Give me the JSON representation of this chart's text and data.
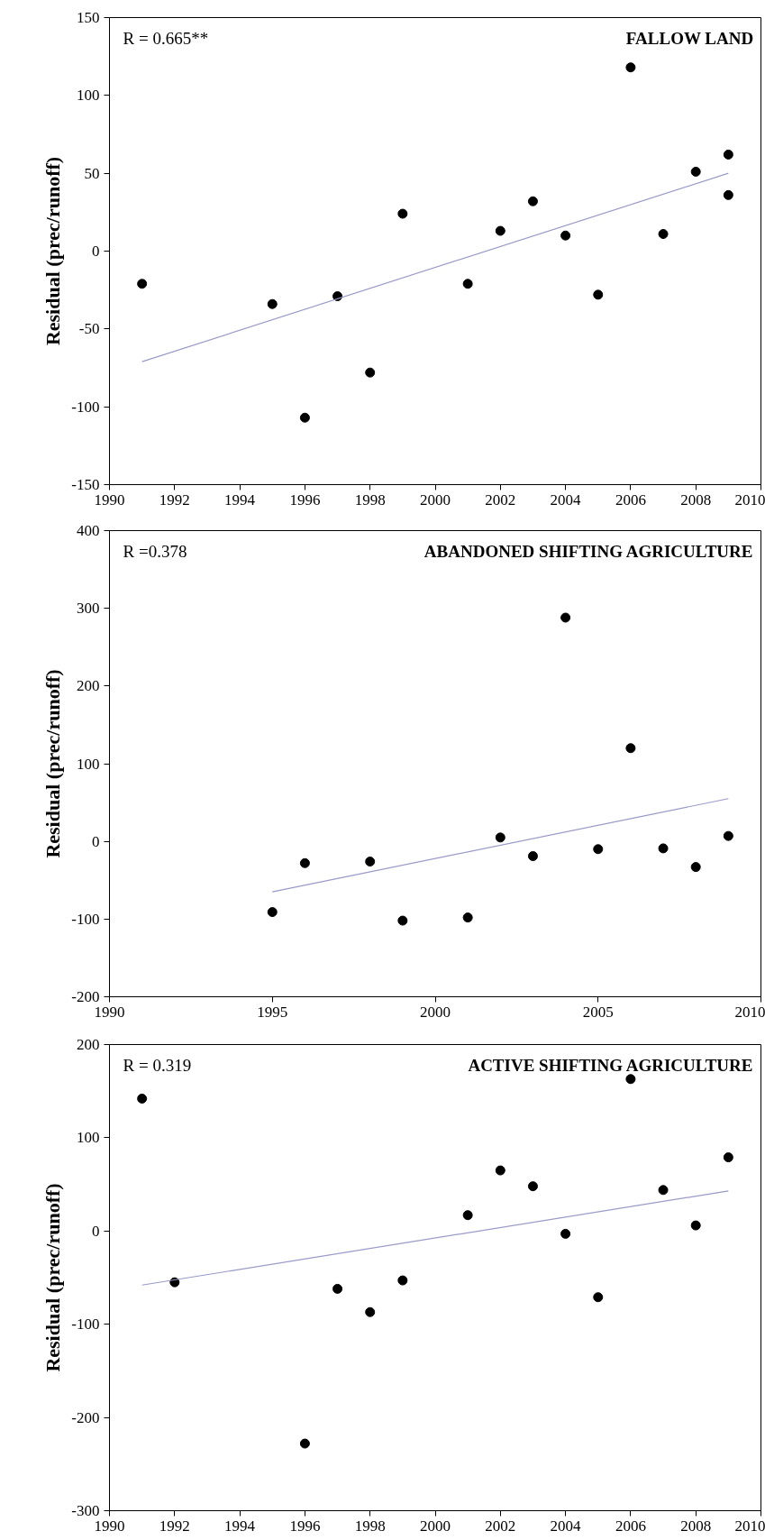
{
  "chart_data": [
    {
      "type": "scatter",
      "title": "FALLOW LAND",
      "ylabel": "Residual (prec/runoff)",
      "annotations": [
        "R =  0.665**"
      ],
      "grid": false,
      "xlim": [
        1990,
        2010
      ],
      "xticks": [
        1990,
        1992,
        1994,
        1996,
        1998,
        2000,
        2002,
        2004,
        2006,
        2008,
        2010
      ],
      "ylim": [
        -150,
        150
      ],
      "yticks": [
        -150,
        -100,
        -50,
        0,
        50,
        100,
        150
      ],
      "series": [
        {
          "color": "#000000",
          "marker": "circle",
          "x": [
            1991,
            1995,
            1996,
            1997,
            1998,
            1999,
            2001,
            2002,
            2003,
            2004,
            2005,
            2006,
            2007,
            2008,
            2009,
            2009
          ],
          "values": [
            -21,
            -34,
            -107,
            -29,
            -78,
            24,
            -21,
            13,
            32,
            10,
            -28,
            118,
            11,
            51,
            62,
            36
          ]
        },
        {
          "type": "line",
          "color": "#9a9ac8",
          "x": [
            1991,
            2009
          ],
          "values": [
            -71,
            50
          ]
        }
      ]
    },
    {
      "type": "scatter",
      "title": "ABANDONED SHIFTING AGRICULTURE",
      "ylabel": "Residual (prec/runoff)",
      "annotations": [
        "R =0.378"
      ],
      "grid": false,
      "xlim": [
        1990,
        2010
      ],
      "xticks": [
        1990,
        1995,
        2000,
        2005,
        2010
      ],
      "ylim": [
        -200,
        400
      ],
      "yticks": [
        -200,
        -100,
        0,
        100,
        200,
        300,
        400
      ],
      "series": [
        {
          "color": "#000000",
          "marker": "circle",
          "x": [
            1995,
            1996,
            1998,
            1999,
            2001,
            2002,
            2003,
            2004,
            2005,
            2006,
            2007,
            2008,
            2009
          ],
          "values": [
            -91,
            -28,
            -26,
            -102,
            -98,
            5,
            -19,
            288,
            -10,
            120,
            -9,
            -33,
            7
          ]
        },
        {
          "type": "line",
          "color": "#9a9ac8",
          "x": [
            1995,
            2009
          ],
          "values": [
            -65,
            55
          ]
        }
      ]
    },
    {
      "type": "scatter",
      "title": "ACTIVE SHIFTING AGRICULTURE",
      "ylabel": "Residual (prec/runoff)",
      "annotations": [
        "R =  0.319"
      ],
      "grid": false,
      "xlim": [
        1990,
        2010
      ],
      "xticks": [
        1990,
        1992,
        1994,
        1996,
        1998,
        2000,
        2002,
        2004,
        2006,
        2008,
        2010
      ],
      "ylim": [
        -300,
        200
      ],
      "yticks": [
        -300,
        -200,
        -100,
        0,
        100,
        200
      ],
      "series": [
        {
          "color": "#000000",
          "marker": "circle",
          "x": [
            1991,
            1992,
            1996,
            1997,
            1998,
            1999,
            2001,
            2002,
            2003,
            2004,
            2005,
            2006,
            2007,
            2008,
            2009
          ],
          "values": [
            142,
            -55,
            -228,
            -62,
            -87,
            -53,
            17,
            65,
            48,
            -3,
            -71,
            163,
            44,
            6,
            79
          ]
        },
        {
          "type": "line",
          "color": "#9a9ac8",
          "x": [
            1991,
            2009
          ],
          "values": [
            -58,
            43
          ]
        }
      ]
    }
  ]
}
